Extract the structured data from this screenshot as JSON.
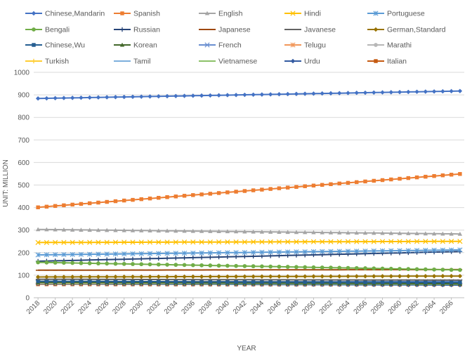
{
  "chart_data": {
    "type": "line",
    "title": "",
    "xlabel": "YEAR",
    "ylabel": "UNIT: MILLION",
    "ylim": [
      0,
      1000
    ],
    "yticks": [
      0,
      100,
      200,
      300,
      400,
      500,
      600,
      700,
      800,
      900,
      1000
    ],
    "xticks": [
      2018,
      2020,
      2022,
      2024,
      2026,
      2028,
      2030,
      2032,
      2034,
      2036,
      2038,
      2040,
      2042,
      2044,
      2046,
      2048,
      2050,
      2052,
      2054,
      2056,
      2058,
      2060,
      2062,
      2064,
      2066
    ],
    "x_start": 2018,
    "x_end": 2067,
    "grid": "horizontal",
    "legend_position": "top",
    "series": [
      {
        "name": "Chinese,Mandarin",
        "color": "#4472C4",
        "marker": "diamond",
        "start": 884,
        "end": 917
      },
      {
        "name": "Spanish",
        "color": "#ED7D31",
        "marker": "square",
        "start": 401,
        "end": 549
      },
      {
        "name": "English",
        "color": "#A5A5A5",
        "marker": "triangle",
        "start": 303,
        "end": 283
      },
      {
        "name": "Hindi",
        "color": "#FFC000",
        "marker": "x",
        "start": 245,
        "end": 250
      },
      {
        "name": "Portuguese",
        "color": "#5B9BD5",
        "marker": "star",
        "start": 190,
        "end": 212
      },
      {
        "name": "Bengali",
        "color": "#70AD47",
        "marker": "circle",
        "start": 157,
        "end": 123
      },
      {
        "name": "Russian",
        "color": "#264478",
        "marker": "plus",
        "start": 162,
        "end": 205
      },
      {
        "name": "Japanese",
        "color": "#9E480E",
        "marker": "dash",
        "start": 122,
        "end": 125
      },
      {
        "name": "Javanese",
        "color": "#636363",
        "marker": "dash",
        "start": 82,
        "end": 78
      },
      {
        "name": "German,Standard",
        "color": "#997300",
        "marker": "diamond",
        "start": 92,
        "end": 96
      },
      {
        "name": "Chinese,Wu",
        "color": "#255E91",
        "marker": "square",
        "start": 73,
        "end": 68
      },
      {
        "name": "Korean",
        "color": "#43682B",
        "marker": "triangle",
        "start": 68,
        "end": 62
      },
      {
        "name": "French",
        "color": "#698ED0",
        "marker": "x",
        "start": 69,
        "end": 72
      },
      {
        "name": "Telugu",
        "color": "#F1975A",
        "marker": "star",
        "start": 71,
        "end": 70
      },
      {
        "name": "Marathi",
        "color": "#B7B7B7",
        "marker": "circle",
        "start": 70,
        "end": 67
      },
      {
        "name": "Turkish",
        "color": "#FFCD33",
        "marker": "plus",
        "start": 66,
        "end": 64
      },
      {
        "name": "Tamil",
        "color": "#7CAFDD",
        "marker": "dash",
        "start": 64,
        "end": 62
      },
      {
        "name": "Vietnamese",
        "color": "#8CC168",
        "marker": "dash",
        "start": 63,
        "end": 60
      },
      {
        "name": "Urdu",
        "color": "#335AA1",
        "marker": "diamond",
        "start": 62,
        "end": 56
      },
      {
        "name": "Italian",
        "color": "#C55A11",
        "marker": "square",
        "start": 60,
        "end": 58
      }
    ]
  }
}
